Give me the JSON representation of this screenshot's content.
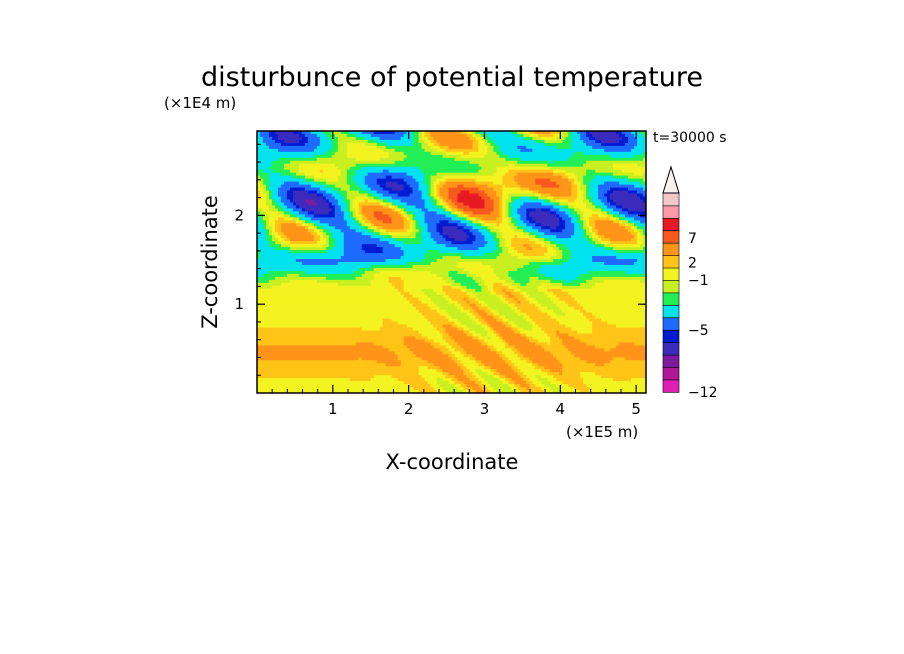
{
  "chart_data": {
    "type": "heatmap",
    "title": "disturbunce of potential temperature",
    "xlabel": "X-coordinate",
    "ylabel": "Z-coordinate",
    "x_unit": "(×1E5 m)",
    "y_unit": "(×1E4 m)",
    "time_label": "t=30000 s",
    "xlim": [
      0,
      5.13
    ],
    "ylim": [
      0,
      2.95
    ],
    "x_ticks": [
      1,
      2,
      3,
      4,
      5
    ],
    "y_ticks": [
      1,
      2
    ],
    "colorbar": {
      "levels": [
        -12,
        -10,
        -8,
        -6,
        -5,
        -3,
        -1,
        0,
        1,
        2,
        3,
        5,
        7,
        9,
        11
      ],
      "tick_labels": [
        "7",
        "2",
        "−1",
        "−5",
        "−12"
      ],
      "colors": [
        "#e21fb5",
        "#b0169a",
        "#7d1ba0",
        "#3a2bbd",
        "#001cd0",
        "#1f6bff",
        "#00e2ee",
        "#22ee55",
        "#c8f020",
        "#f3f321",
        "#ffc417",
        "#ff9418",
        "#f7581d",
        "#e61a23",
        "#ff9aa8",
        "#f4c7c7"
      ],
      "extend": "max"
    }
  }
}
